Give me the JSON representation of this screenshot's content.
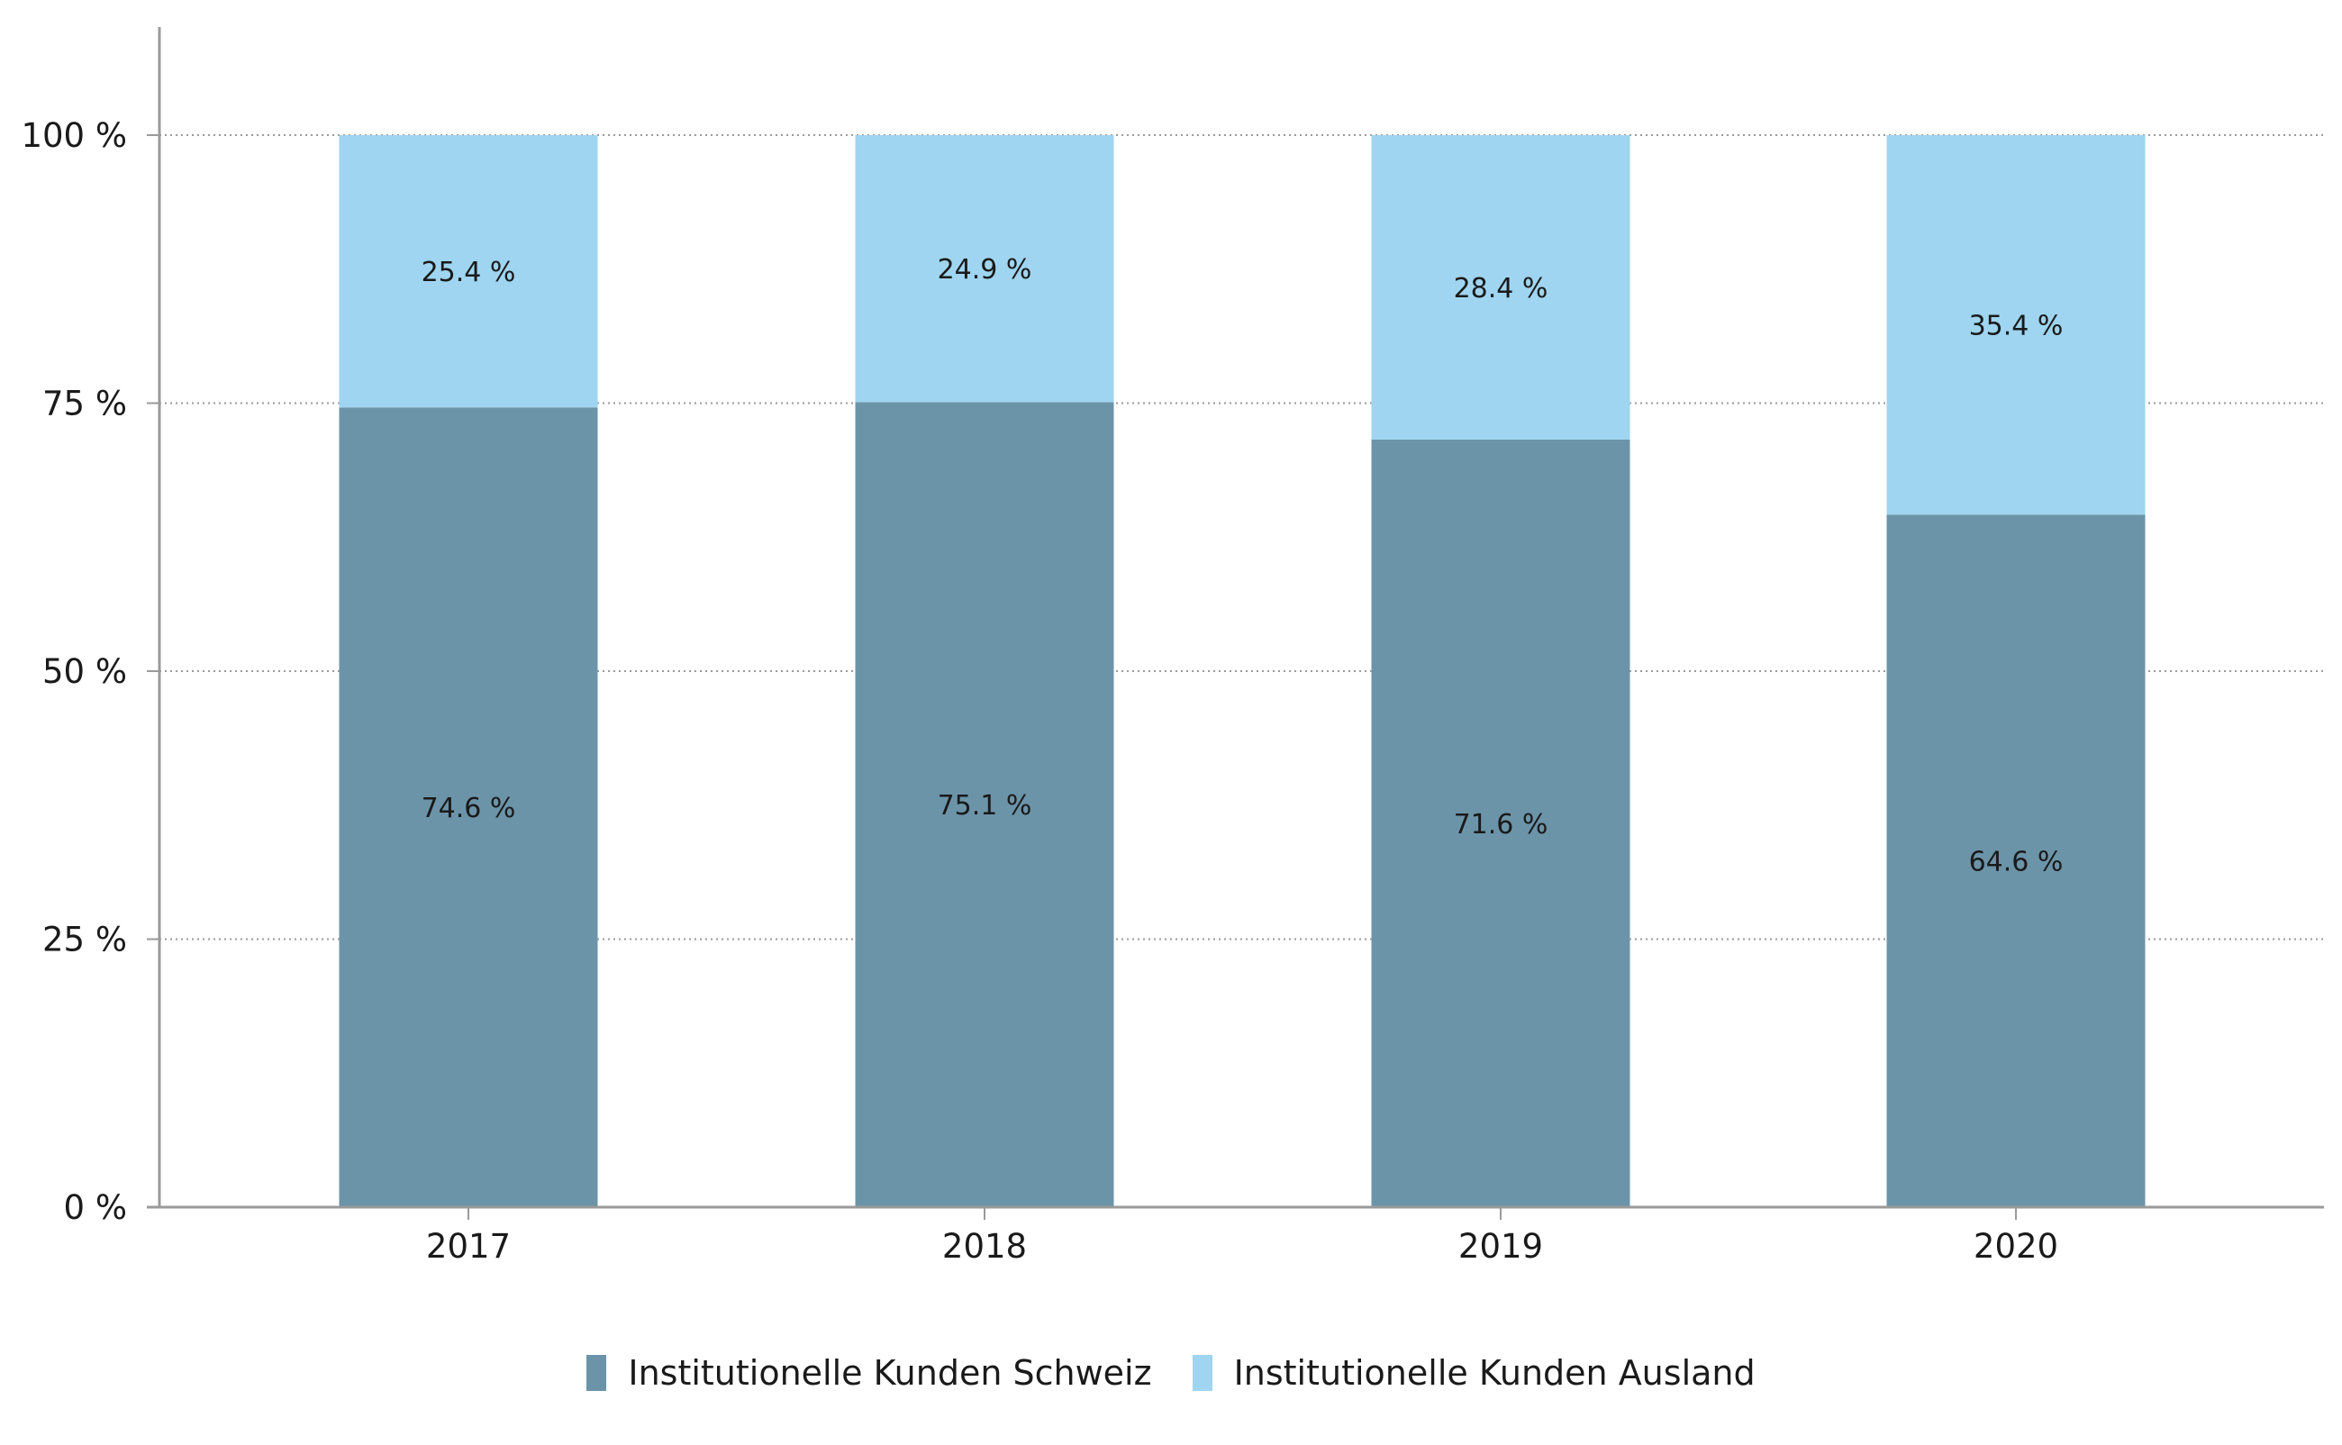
{
  "chart_data": {
    "type": "bar",
    "stacked": true,
    "categories": [
      "2017",
      "2018",
      "2019",
      "2020"
    ],
    "series": [
      {
        "name": "Institutionelle Kunden Schweiz",
        "values": [
          74.6,
          75.1,
          71.6,
          64.6
        ],
        "labels": [
          "74.6 %",
          "75.1 %",
          "71.6 %",
          "64.6 %"
        ],
        "color": "#6c94a9"
      },
      {
        "name": "Institutionelle Kunden Ausland",
        "values": [
          25.4,
          24.9,
          28.4,
          35.4
        ],
        "labels": [
          "25.4 %",
          "24.9 %",
          "28.4 %",
          "35.4 %"
        ],
        "color": "#9fd5f0"
      }
    ],
    "y_ticks": [
      {
        "value": 0,
        "label": "0 %"
      },
      {
        "value": 25,
        "label": "25 %"
      },
      {
        "value": 50,
        "label": "50 %"
      },
      {
        "value": 75,
        "label": "75 %"
      },
      {
        "value": 100,
        "label": "100 %"
      }
    ],
    "ylim": [
      0,
      110
    ],
    "grid": true,
    "legend_position": "bottom-center",
    "title": "",
    "xlabel": "",
    "ylabel": ""
  }
}
